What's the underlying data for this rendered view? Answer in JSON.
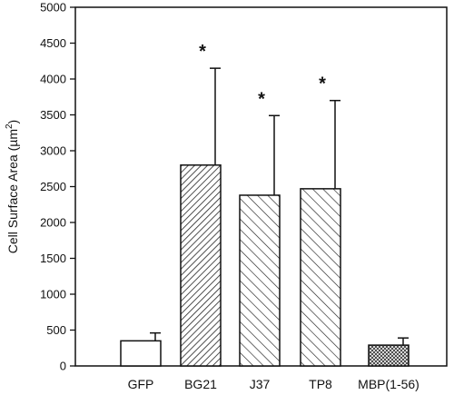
{
  "chart_data": {
    "type": "bar",
    "title": "",
    "xlabel": "",
    "ylabel": "Cell Surface Area (µm²)",
    "ylabel_parts": {
      "main": "Cell Surface Area (µm",
      "sup": "2",
      "end": ")"
    },
    "ylim": [
      0,
      5000
    ],
    "yticks": [
      0,
      500,
      1000,
      1500,
      2000,
      2500,
      3000,
      3500,
      4000,
      4500,
      5000
    ],
    "categories": [
      "GFP",
      "BG21",
      "J37",
      "TP8",
      "MBP(1-56)"
    ],
    "values": [
      350,
      2800,
      2380,
      2470,
      290
    ],
    "error_upper": [
      460,
      4150,
      3490,
      3700,
      390
    ],
    "significant": [
      false,
      true,
      true,
      true,
      false
    ],
    "significance_marker": "*",
    "fills": [
      "white",
      "hatch-dense-back",
      "hatch-back",
      "hatch-back",
      "crosshatch"
    ],
    "grid": false
  }
}
